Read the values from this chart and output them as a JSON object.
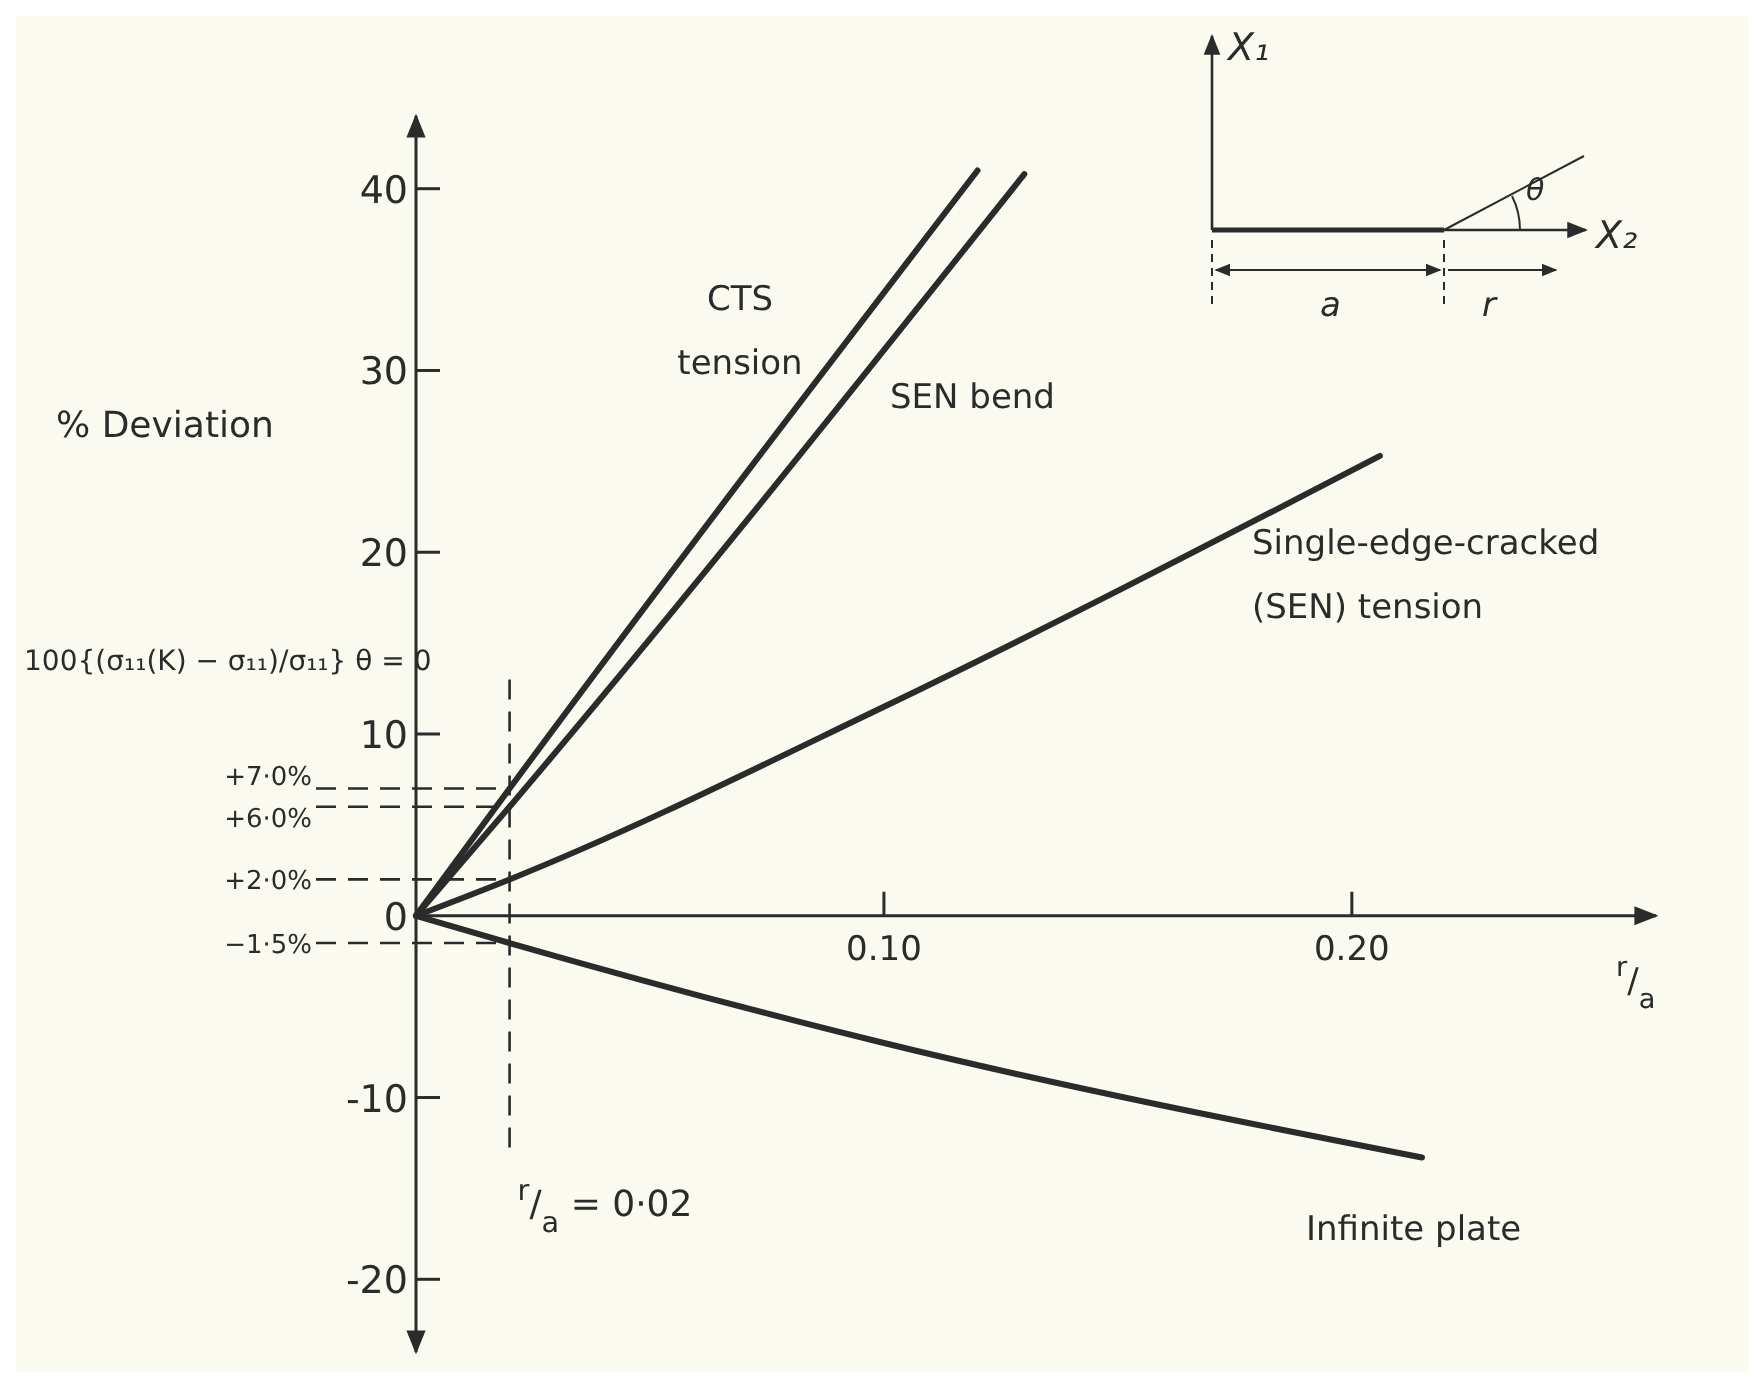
{
  "chart_data": {
    "type": "line",
    "ylabel": "% Deviation",
    "xlabel": "$^{r}$/$_{a}$",
    "xlim": [
      0,
      0.265
    ],
    "ylim": [
      -24,
      44
    ],
    "xticks": [
      {
        "value": 0.1,
        "label": "0.10"
      },
      {
        "value": 0.2,
        "label": "0.20"
      }
    ],
    "yticks": [
      {
        "value": -20,
        "label": "-20"
      },
      {
        "value": -10,
        "label": "-10"
      },
      0,
      10,
      20,
      30,
      40
    ],
    "grid": false,
    "line_style": "solid",
    "series": [
      {
        "name": "CTS tension",
        "color": "#2b2b2b",
        "x": [
          0,
          0.02,
          0.12
        ],
        "values": [
          0,
          7,
          41
        ]
      },
      {
        "name": "SEN bend",
        "color": "#2b2b2b",
        "x": [
          0,
          0.02,
          0.13
        ],
        "values": [
          0,
          6,
          40.8
        ]
      },
      {
        "name": "Single-edge-cracked (SEN) tension",
        "color": "#2b2b2b",
        "x": [
          0,
          0.02,
          0.1,
          0.206
        ],
        "values": [
          0,
          2,
          11.5,
          25.3
        ]
      },
      {
        "name": "Infinite plate",
        "color": "#2b2b2b",
        "x": [
          0,
          0.02,
          0.1,
          0.215
        ],
        "values": [
          0,
          -1.5,
          -7,
          -13.3
        ]
      }
    ],
    "ref_lines": [
      {
        "axis": "x",
        "value": 0.02,
        "label": "$^{r}$/$_{a}$  = 0·02",
        "line_style": "dashed",
        "color": "#2b2b2b"
      },
      {
        "axis": "y",
        "value": 7,
        "label": "+7·0%",
        "line_style": "dashed",
        "color": "#2b2b2b"
      },
      {
        "axis": "y",
        "value": 6,
        "label": "+6·0%",
        "line_style": "dashed",
        "color": "#2b2b2b"
      },
      {
        "axis": "y",
        "value": 2,
        "label": "+2·0%",
        "line_style": "dashed",
        "color": "#2b2b2b"
      },
      {
        "axis": "y",
        "value": -1.5,
        "label": "−1·5%",
        "line_style": "dashed",
        "color": "#2b2b2b"
      }
    ],
    "annotations": [
      "100{(σ₁₁(K) − σ₁₁)/σ₁₁} θ = 0",
      "X₁",
      "X₂",
      "θ",
      "a",
      "r"
    ]
  }
}
